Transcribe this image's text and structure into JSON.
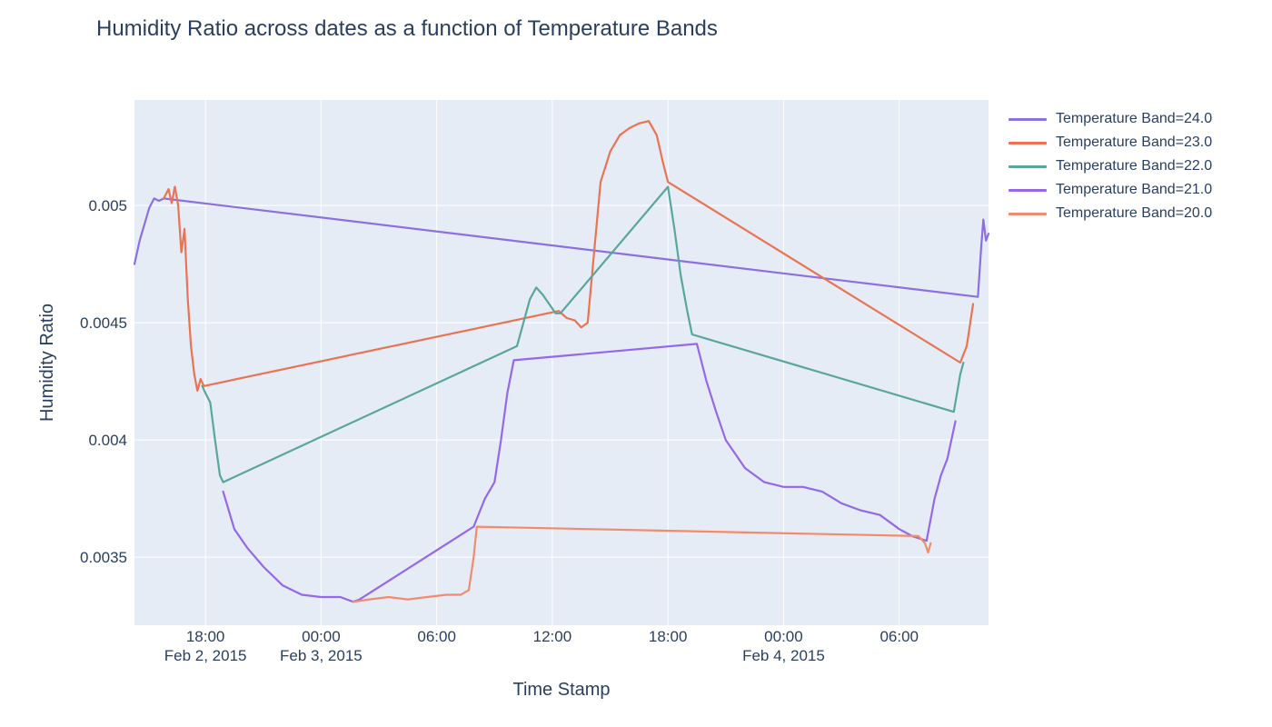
{
  "chart_data": {
    "type": "line",
    "title": "Humidity Ratio across dates as a function of Temperature Bands",
    "xlabel": "Time Stamp",
    "ylabel": "Humidity Ratio",
    "xlim": [
      "2015-02-02T14:19",
      "2015-02-04T10:38"
    ],
    "ylim": [
      0.00321,
      0.00545
    ],
    "grid": true,
    "legend_position": "top-right",
    "x_ticks": [
      {
        "value": "2015-02-02T18:00",
        "line1": "18:00",
        "line2": "Feb 2, 2015"
      },
      {
        "value": "2015-02-03T00:00",
        "line1": "00:00",
        "line2": "Feb 3, 2015"
      },
      {
        "value": "2015-02-03T06:00",
        "line1": "06:00",
        "line2": ""
      },
      {
        "value": "2015-02-03T12:00",
        "line1": "12:00",
        "line2": ""
      },
      {
        "value": "2015-02-03T18:00",
        "line1": "18:00",
        "line2": ""
      },
      {
        "value": "2015-02-04T00:00",
        "line1": "00:00",
        "line2": "Feb 4, 2015"
      },
      {
        "value": "2015-02-04T06:00",
        "line1": "06:00",
        "line2": ""
      }
    ],
    "y_ticks": [
      {
        "value": 0.0035,
        "label": "0.0035"
      },
      {
        "value": 0.004,
        "label": "0.004"
      },
      {
        "value": 0.0045,
        "label": "0.0045"
      },
      {
        "value": 0.005,
        "label": "0.005"
      }
    ],
    "series": [
      {
        "name": "Temperature Band=24.0",
        "color": "#8c6fe0",
        "points": [
          [
            "2015-02-02T14:19",
            0.00475
          ],
          [
            "2015-02-02T14:35",
            0.00485
          ],
          [
            "2015-02-02T14:50",
            0.00492
          ],
          [
            "2015-02-02T15:05",
            0.00499
          ],
          [
            "2015-02-02T15:20",
            0.00503
          ],
          [
            "2015-02-02T15:35",
            0.00502
          ],
          [
            "2015-02-02T15:50",
            0.00503
          ],
          [
            "2015-02-04T10:05",
            0.00461
          ],
          [
            "2015-02-04T10:15",
            0.00482
          ],
          [
            "2015-02-04T10:22",
            0.00494
          ],
          [
            "2015-02-04T10:30",
            0.00485
          ],
          [
            "2015-02-04T10:38",
            0.00488
          ]
        ]
      },
      {
        "name": "Temperature Band=23.0",
        "color": "#ea7352",
        "points": [
          [
            "2015-02-02T15:50",
            0.00503
          ],
          [
            "2015-02-02T16:05",
            0.00507
          ],
          [
            "2015-02-02T16:15",
            0.00501
          ],
          [
            "2015-02-02T16:25",
            0.00508
          ],
          [
            "2015-02-02T16:35",
            0.005
          ],
          [
            "2015-02-02T16:45",
            0.0048
          ],
          [
            "2015-02-02T16:55",
            0.0049
          ],
          [
            "2015-02-02T17:05",
            0.0046
          ],
          [
            "2015-02-02T17:15",
            0.0044
          ],
          [
            "2015-02-02T17:25",
            0.00428
          ],
          [
            "2015-02-02T17:35",
            0.00421
          ],
          [
            "2015-02-02T17:45",
            0.00426
          ],
          [
            "2015-02-02T17:55",
            0.00423
          ],
          [
            "2015-02-03T12:20",
            0.00455
          ],
          [
            "2015-02-03T12:45",
            0.00452
          ],
          [
            "2015-02-03T13:10",
            0.00451
          ],
          [
            "2015-02-03T13:30",
            0.00448
          ],
          [
            "2015-02-03T13:50",
            0.0045
          ],
          [
            "2015-02-03T14:10",
            0.0048
          ],
          [
            "2015-02-03T14:30",
            0.0051
          ],
          [
            "2015-02-03T15:00",
            0.00523
          ],
          [
            "2015-02-03T15:30",
            0.0053
          ],
          [
            "2015-02-03T16:00",
            0.00533
          ],
          [
            "2015-02-03T16:30",
            0.00535
          ],
          [
            "2015-02-03T17:00",
            0.00536
          ],
          [
            "2015-02-03T17:25",
            0.0053
          ],
          [
            "2015-02-03T17:45",
            0.00518
          ],
          [
            "2015-02-03T18:00",
            0.0051
          ],
          [
            "2015-02-04T09:10",
            0.00433
          ],
          [
            "2015-02-04T09:30",
            0.0044
          ],
          [
            "2015-02-04T09:50",
            0.00458
          ]
        ]
      },
      {
        "name": "Temperature Band=22.0",
        "color": "#5aa69c",
        "points": [
          [
            "2015-02-02T17:50",
            0.00423
          ],
          [
            "2015-02-02T18:00",
            0.0042
          ],
          [
            "2015-02-02T18:15",
            0.00416
          ],
          [
            "2015-02-02T18:30",
            0.004
          ],
          [
            "2015-02-02T18:45",
            0.00385
          ],
          [
            "2015-02-02T18:55",
            0.00382
          ],
          [
            "2015-02-03T10:10",
            0.0044
          ],
          [
            "2015-02-03T10:30",
            0.0045
          ],
          [
            "2015-02-03T10:50",
            0.0046
          ],
          [
            "2015-02-03T11:10",
            0.00465
          ],
          [
            "2015-02-03T11:30",
            0.00462
          ],
          [
            "2015-02-03T11:50",
            0.00458
          ],
          [
            "2015-02-03T12:10",
            0.00454
          ],
          [
            "2015-02-03T12:25",
            0.00454
          ],
          [
            "2015-02-03T18:00",
            0.00508
          ],
          [
            "2015-02-03T18:20",
            0.0049
          ],
          [
            "2015-02-03T18:40",
            0.0047
          ],
          [
            "2015-02-03T19:00",
            0.00455
          ],
          [
            "2015-02-03T19:15",
            0.00445
          ],
          [
            "2015-02-04T08:50",
            0.00412
          ],
          [
            "2015-02-04T09:10",
            0.00428
          ],
          [
            "2015-02-04T09:20",
            0.00433
          ]
        ]
      },
      {
        "name": "Temperature Band=21.0",
        "color": "#9468e8",
        "points": [
          [
            "2015-02-02T18:55",
            0.00378
          ],
          [
            "2015-02-02T19:30",
            0.00362
          ],
          [
            "2015-02-02T20:10",
            0.00354
          ],
          [
            "2015-02-02T21:00",
            0.00346
          ],
          [
            "2015-02-02T22:00",
            0.00338
          ],
          [
            "2015-02-02T23:00",
            0.00334
          ],
          [
            "2015-02-03T00:00",
            0.00333
          ],
          [
            "2015-02-03T01:00",
            0.00333
          ],
          [
            "2015-02-03T01:40",
            0.00331
          ],
          [
            "2015-02-03T02:00",
            0.00332
          ],
          [
            "2015-02-03T07:55",
            0.00363
          ],
          [
            "2015-02-03T08:30",
            0.00375
          ],
          [
            "2015-02-03T09:00",
            0.00382
          ],
          [
            "2015-02-03T09:20",
            0.004
          ],
          [
            "2015-02-03T09:40",
            0.0042
          ],
          [
            "2015-02-03T10:00",
            0.00434
          ],
          [
            "2015-02-03T19:30",
            0.00441
          ],
          [
            "2015-02-03T20:00",
            0.00425
          ],
          [
            "2015-02-03T20:30",
            0.00412
          ],
          [
            "2015-02-03T21:00",
            0.004
          ],
          [
            "2015-02-03T22:00",
            0.00388
          ],
          [
            "2015-02-03T23:00",
            0.00382
          ],
          [
            "2015-02-04T00:00",
            0.0038
          ],
          [
            "2015-02-04T01:00",
            0.0038
          ],
          [
            "2015-02-04T02:00",
            0.00378
          ],
          [
            "2015-02-04T03:00",
            0.00373
          ],
          [
            "2015-02-04T04:00",
            0.0037
          ],
          [
            "2015-02-04T05:00",
            0.00368
          ],
          [
            "2015-02-04T06:00",
            0.00362
          ],
          [
            "2015-02-04T06:40",
            0.00359
          ],
          [
            "2015-02-04T07:25",
            0.00357
          ],
          [
            "2015-02-04T07:50",
            0.00375
          ],
          [
            "2015-02-04T08:10",
            0.00385
          ],
          [
            "2015-02-04T08:30",
            0.00392
          ],
          [
            "2015-02-04T08:55",
            0.00408
          ]
        ]
      },
      {
        "name": "Temperature Band=20.0",
        "color": "#f28b6e",
        "points": [
          [
            "2015-02-03T01:40",
            0.00331
          ],
          [
            "2015-02-03T02:30",
            0.00332
          ],
          [
            "2015-02-03T03:30",
            0.00333
          ],
          [
            "2015-02-03T04:30",
            0.00332
          ],
          [
            "2015-02-03T05:30",
            0.00333
          ],
          [
            "2015-02-03T06:30",
            0.00334
          ],
          [
            "2015-02-03T07:15",
            0.00334
          ],
          [
            "2015-02-03T07:40",
            0.00336
          ],
          [
            "2015-02-03T07:55",
            0.0035
          ],
          [
            "2015-02-03T08:05",
            0.00363
          ],
          [
            "2015-02-04T07:00",
            0.00359
          ],
          [
            "2015-02-04T07:20",
            0.00356
          ],
          [
            "2015-02-04T07:30",
            0.00352
          ],
          [
            "2015-02-04T07:38",
            0.00356
          ]
        ]
      }
    ]
  }
}
